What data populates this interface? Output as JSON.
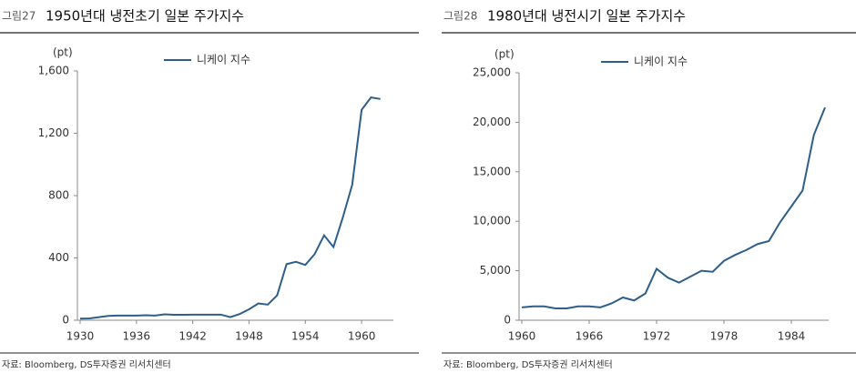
{
  "chart_data": [
    {
      "type": "line",
      "figure_label": "그림27",
      "title": "1950년대 냉전초기 일본 주가지수",
      "y_unit": "(pt)",
      "source": "자료: Bloomberg, DS투자증권 리서치센터",
      "x": [
        1930,
        1931,
        1932,
        1933,
        1934,
        1935,
        1936,
        1937,
        1938,
        1939,
        1940,
        1941,
        1942,
        1943,
        1944,
        1945,
        1946,
        1947,
        1948,
        1949,
        1950,
        1951,
        1952,
        1953,
        1954,
        1955,
        1956,
        1957,
        1958,
        1959,
        1960,
        1961,
        1962
      ],
      "series": [
        {
          "name": "니케이 지수",
          "color": "#2e5f8a",
          "values": [
            10,
            12,
            20,
            28,
            30,
            30,
            30,
            32,
            30,
            38,
            35,
            35,
            36,
            36,
            36,
            36,
            20,
            40,
            70,
            108,
            100,
            160,
            360,
            375,
            355,
            425,
            545,
            470,
            660,
            870,
            1350,
            1430,
            1420
          ]
        }
      ],
      "xlim": [
        1930,
        1963
      ],
      "xticks": [
        1930,
        1936,
        1942,
        1948,
        1954,
        1960
      ],
      "ylim": [
        0,
        1600
      ],
      "yticks": [
        0,
        400,
        800,
        {
          "value": 1200,
          "label": "1,200"
        },
        {
          "value": 1600,
          "label": "1,600"
        }
      ]
    },
    {
      "type": "line",
      "figure_label": "그림28",
      "title": "1980년대 냉전시기 일본 주가지수",
      "y_unit": "(pt)",
      "source": "자료: Bloomberg, DS투자증권 리서치센터",
      "x": [
        1960,
        1961,
        1962,
        1963,
        1964,
        1965,
        1966,
        1967,
        1968,
        1969,
        1970,
        1971,
        1972,
        1973,
        1974,
        1975,
        1976,
        1977,
        1978,
        1979,
        1980,
        1981,
        1982,
        1983,
        1984,
        1985,
        1986,
        1987
      ],
      "series": [
        {
          "name": "니케이 지수",
          "color": "#2e5f8a",
          "values": [
            1300,
            1400,
            1400,
            1200,
            1200,
            1400,
            1400,
            1300,
            1700,
            2300,
            2000,
            2700,
            5200,
            4300,
            3800,
            4400,
            5000,
            4900,
            6000,
            6600,
            7100,
            7700,
            8000,
            9900,
            11500,
            13100,
            18700,
            21500
          ]
        }
      ],
      "xlim": [
        1960,
        1987
      ],
      "xticks": [
        1960,
        1966,
        1972,
        1978,
        1984
      ],
      "ylim": [
        0,
        25000
      ],
      "yticks": [
        0,
        {
          "value": 5000,
          "label": "5,000"
        },
        {
          "value": 10000,
          "label": "10,000"
        },
        {
          "value": 15000,
          "label": "15,000"
        },
        {
          "value": 20000,
          "label": "20,000"
        },
        {
          "value": 25000,
          "label": "25,000"
        }
      ]
    }
  ]
}
